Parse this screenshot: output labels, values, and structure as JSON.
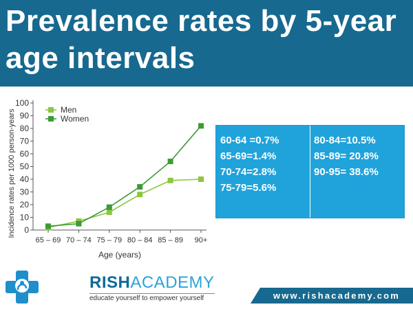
{
  "title": "Prevalence rates by 5-year age intervals",
  "chart_data": {
    "type": "line",
    "categories": [
      "65 – 69",
      "70 – 74",
      "75 – 79",
      "80 – 84",
      "85 – 89",
      "90+"
    ],
    "series": [
      {
        "name": "Men",
        "values": [
          2,
          7,
          14,
          28,
          39,
          40
        ],
        "color": "#8dc63f"
      },
      {
        "name": "Women",
        "values": [
          3,
          5,
          18,
          34,
          54,
          82
        ],
        "color": "#3d9b35"
      }
    ],
    "xlabel": "Age (years)",
    "ylabel": "Incidence rates per 1000 person-years",
    "ylim": [
      0,
      100
    ],
    "yticks": [
      "0",
      "10",
      "20",
      "30",
      "40",
      "50",
      "60",
      "70",
      "80",
      "90",
      "100"
    ],
    "legend": "top-left",
    "grid": false
  },
  "rates": {
    "left": [
      "60-64 =0.7%",
      "65-69=1.4%",
      "70-74=2.8%",
      "75-79=5.6%"
    ],
    "right": [
      "80-84=10.5%",
      "85-89= 20.8%",
      "90-95= 38.6%"
    ]
  },
  "footer": {
    "brand_rish": "RISH",
    "brand_academy": "ACADEMY",
    "tagline": "educate yourself to empower yourself",
    "url": "www.rishacademy.com"
  },
  "colors": {
    "title_bar": "#17698f",
    "rates_box": "#20a3db",
    "men": "#8dc63f",
    "women": "#3d9b35"
  }
}
